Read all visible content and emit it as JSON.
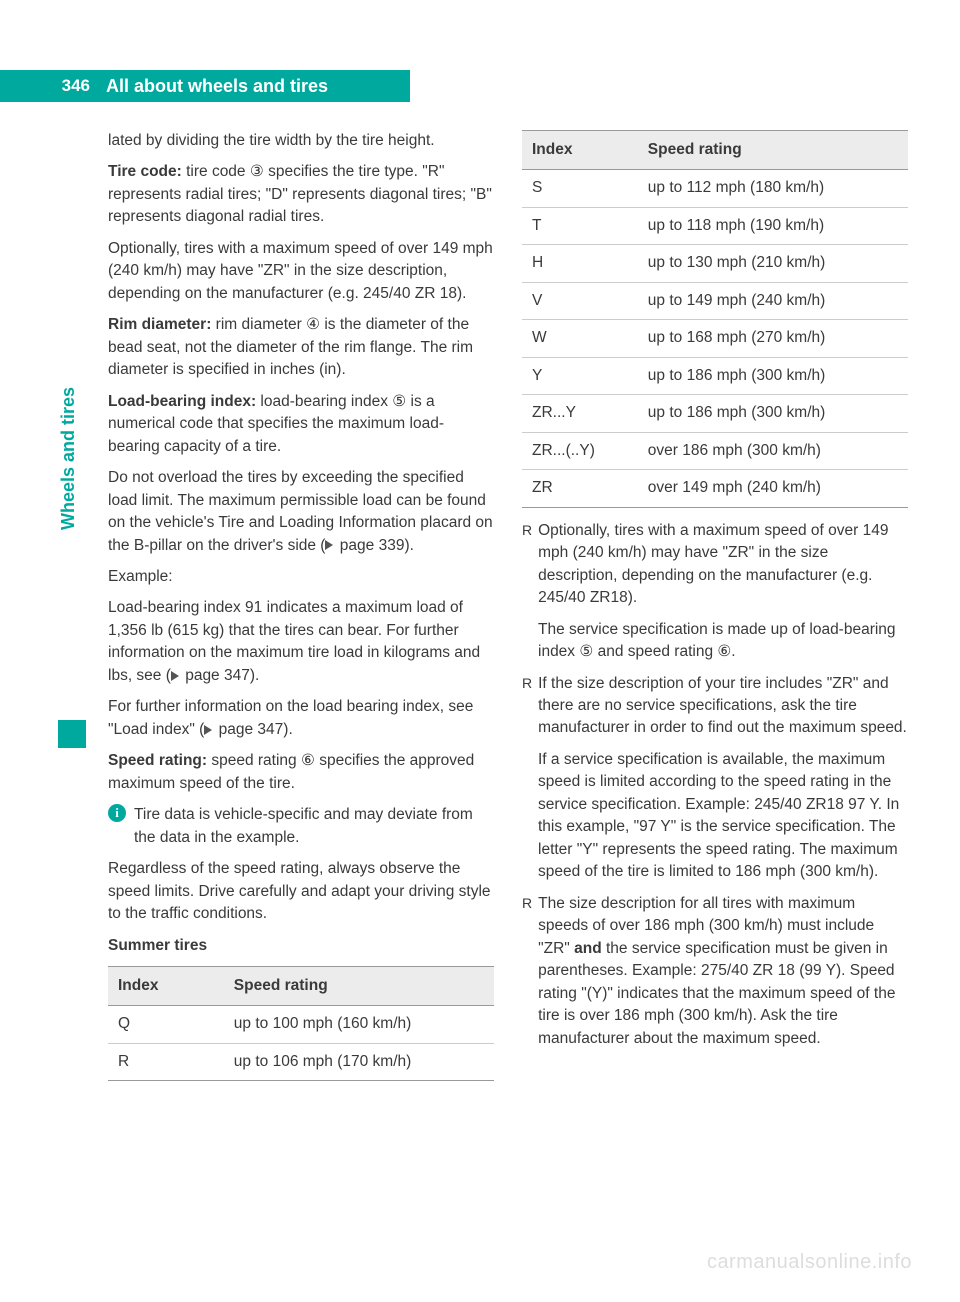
{
  "page": {
    "number": "346",
    "header_title": "All about wheels and tires",
    "side_tab": "Wheels and tires"
  },
  "left": {
    "p1": "lated by dividing the tire width by the tire height.",
    "tire_code_label": "Tire code:",
    "tire_code_body_a": " tire code ",
    "tire_code_callout": "③",
    "tire_code_body_b": " specifies the tire type. \"R\" represents radial tires; \"D\" represents diagonal tires; \"B\" represents diagonal radial tires.",
    "p3": "Optionally, tires with a maximum speed of over 149 mph (240 km/h) may have \"ZR\" in the size description, depending on the manufacturer (e.g. 245/40 ZR 18).",
    "rim_label": "Rim diameter:",
    "rim_body_a": " rim diameter ",
    "rim_callout": "④",
    "rim_body_b": " is the diameter of the bead seat, not the diameter of the rim flange. The rim diameter is specified in inches (in).",
    "load_label": "Load-bearing index:",
    "load_body_a": " load-bearing index ",
    "load_callout": "⑤",
    "load_body_b": " is a numerical code that specifies the maximum load-bearing capacity of a tire.",
    "p6a": "Do not overload the tires by exceeding the specified load limit. The maximum permissible load can be found on the vehicle's Tire and Loading Information placard on the B-pillar on the driver's side (",
    "p6b": " page 339).",
    "example_label": "Example:",
    "p7a": "Load-bearing index 91 indicates a maximum load of 1,356 lb (615 kg) that the tires can bear. For further information on the maximum tire load in kilograms and lbs, see (",
    "p7b": " page 347).",
    "p8a": "For further information on the load bearing index, see \"Load index\" (",
    "p8b": " page 347).",
    "speed_label": "Speed rating:",
    "speed_body_a": " speed rating ",
    "speed_callout": "⑥",
    "speed_body_b": " specifies the approved maximum speed of the tire.",
    "info_text": "Tire data is vehicle-specific and may deviate from the data in the example.",
    "p10": "Regardless of the speed rating, always observe the speed limits. Drive carefully and adapt your driving style to the traffic conditions.",
    "summer_label": "Summer tires",
    "table1": {
      "h1": "Index",
      "h2": "Speed rating",
      "rows": [
        {
          "idx": "Q",
          "val": "up to 100 mph (160 km/h)"
        },
        {
          "idx": "R",
          "val": "up to 106 mph (170 km/h)"
        }
      ]
    }
  },
  "right": {
    "table2": {
      "h1": "Index",
      "h2": "Speed rating",
      "rows": [
        {
          "idx": "S",
          "val": "up to 112 mph (180 km/h)"
        },
        {
          "idx": "T",
          "val": "up to 118 mph (190 km/h)"
        },
        {
          "idx": "H",
          "val": "up to 130 mph (210 km/h)"
        },
        {
          "idx": "V",
          "val": "up to 149 mph (240 km/h)"
        },
        {
          "idx": "W",
          "val": "up to 168 mph (270 km/h)"
        },
        {
          "idx": "Y",
          "val": "up to 186 mph (300 km/h)"
        },
        {
          "idx": "ZR...Y",
          "val": "up to 186 mph (300 km/h)"
        },
        {
          "idx": "ZR...(..Y)",
          "val": "over 186 mph (300 km/h)"
        },
        {
          "idx": "ZR",
          "val": "over 149 mph (240 km/h)"
        }
      ]
    },
    "b1": "Optionally, tires with a maximum speed of over 149 mph (240 km/h) may have \"ZR\" in the size description, depending on the manufacturer (e.g. 245/40 ZR18).",
    "b1_sub_a": "The service specification is made up of load-bearing index ",
    "b1_c1": "⑤",
    "b1_sub_b": " and speed rating ",
    "b1_c2": "⑥",
    "b1_sub_c": ".",
    "b2": "If the size description of your tire includes \"ZR\" and there are no service specifications, ask the tire manufacturer in order to find out the maximum speed.",
    "b2_sub": "If a service specification is available, the maximum speed is limited according to the speed rating in the service specification. Example: 245/40 ZR18 97 Y. In this example, \"97 Y\" is the service specification. The letter \"Y\" represents the speed rating. The maximum speed of the tire is limited to 186 mph (300 km/h).",
    "b3_a": "The size description for all tires with maximum speeds of over 186 mph (300 km/h) must include \"ZR\" ",
    "b3_bold": "and",
    "b3_b": " the service specification must be given in parentheses. Example: 275/40 ZR 18 (99 Y). Speed rating \"(Y)\" indicates that the maximum speed of the tire is over 186 mph (300 km/h). Ask the tire manufacturer about the maximum speed."
  },
  "watermark": "carmanualsonline.info"
}
